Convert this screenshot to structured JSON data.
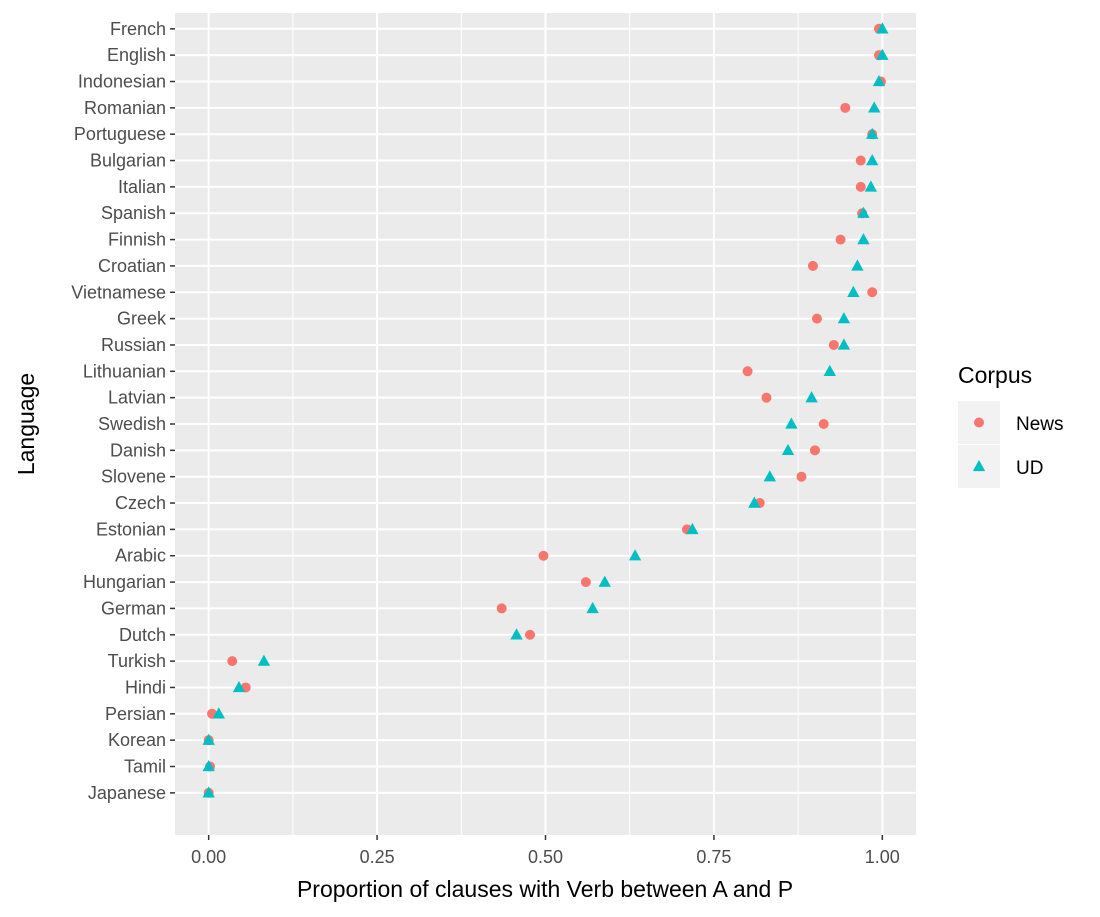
{
  "chart_data": {
    "type": "scatter",
    "title": "",
    "xlabel": "Proportion of clauses with Verb between A and P",
    "ylabel": "Language",
    "xlim": [
      -0.05,
      1.05
    ],
    "xticks": [
      0,
      0.25,
      0.5,
      0.75,
      1
    ],
    "xtick_labels": [
      "0.00",
      "0.25",
      "0.50",
      "0.75",
      "1.00"
    ],
    "grid": true,
    "legend": {
      "title": "Corpus",
      "position": "right"
    },
    "categories": [
      "French",
      "English",
      "Indonesian",
      "Romanian",
      "Portuguese",
      "Bulgarian",
      "Italian",
      "Spanish",
      "Finnish",
      "Croatian",
      "Vietnamese",
      "Greek",
      "Russian",
      "Lithuanian",
      "Latvian",
      "Swedish",
      "Danish",
      "Slovene",
      "Czech",
      "Estonian",
      "Arabic",
      "Hungarian",
      "German",
      "Dutch",
      "Turkish",
      "Hindi",
      "Persian",
      "Korean",
      "Tamil",
      "Japanese"
    ],
    "series": [
      {
        "name": "News",
        "marker": "circle",
        "color": "#F8766D",
        "values": [
          0.995,
          0.995,
          0.998,
          0.945,
          0.985,
          0.968,
          0.968,
          0.97,
          0.938,
          0.897,
          0.985,
          0.903,
          0.928,
          0.8,
          0.828,
          0.913,
          0.9,
          0.88,
          0.818,
          0.71,
          0.497,
          0.56,
          0.435,
          0.477,
          0.035,
          0.055,
          0.005,
          0.0,
          0.002,
          0.0
        ]
      },
      {
        "name": "UD",
        "marker": "triangle",
        "color": "#00BFC4",
        "values": [
          1.0,
          1.0,
          0.995,
          0.988,
          0.985,
          0.985,
          0.983,
          0.972,
          0.972,
          0.963,
          0.957,
          0.943,
          0.943,
          0.922,
          0.895,
          0.865,
          0.86,
          0.833,
          0.81,
          0.718,
          0.633,
          0.588,
          0.57,
          0.457,
          0.082,
          0.045,
          0.015,
          0.0,
          0.0,
          0.0
        ]
      }
    ]
  }
}
